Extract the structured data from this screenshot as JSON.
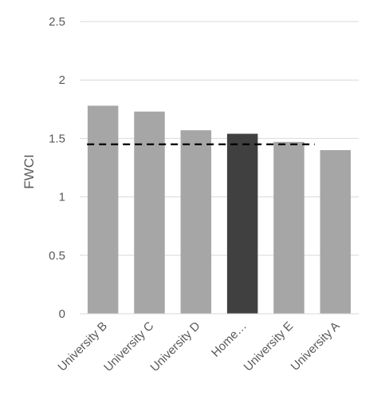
{
  "chart_data": {
    "type": "bar",
    "title": "",
    "xlabel": "",
    "ylabel": "FWCI",
    "ylim": [
      0,
      2.5
    ],
    "yticks": [
      "0",
      "0.5",
      "1",
      "1.5",
      "2",
      "2.5"
    ],
    "ytick_values": [
      0,
      0.5,
      1,
      1.5,
      2,
      2.5
    ],
    "categories": [
      "University B",
      "University C",
      "University D",
      "Home…",
      "University E",
      "University A"
    ],
    "values": [
      1.78,
      1.73,
      1.57,
      1.54,
      1.47,
      1.4
    ],
    "highlight_category": "Home…",
    "reference_line": {
      "value": 1.45,
      "style": "dashed"
    },
    "grid": true,
    "legend": "none",
    "colors": {
      "bar": "#a6a6a6",
      "highlight": "#404040",
      "grid": "#d9d9d9",
      "reference": "#000000",
      "text": "#595959"
    }
  }
}
